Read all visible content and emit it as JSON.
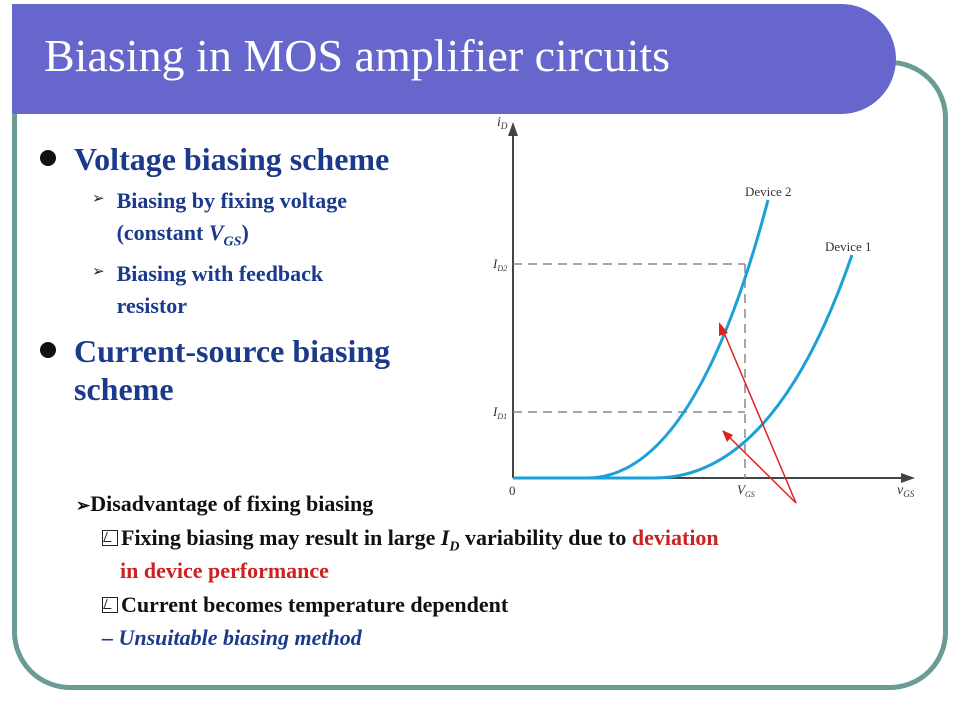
{
  "slide": {
    "title": "Biasing in MOS amplifier circuits",
    "bullet1": "Voltage biasing scheme",
    "sub1_line1": "Biasing by fixing voltage",
    "sub1_line2_pre": "(constant ",
    "sub1_var": "V",
    "sub1_subscript": "GS",
    "sub1_line2_post": ")",
    "sub2_line1": "Biasing with feedback",
    "sub2_line2": "resistor",
    "bullet2_line1": "Current-source biasing",
    "bullet2_line2": "scheme",
    "disadvantage_heading": "Disadvantage of fixing biasing",
    "point1_pre": "Fixing biasing may result in large ",
    "point1_var": "I",
    "point1_subscript": "D",
    "point1_mid": " variability due to ",
    "point1_red": "deviation",
    "point1_red_line2": "in device performance",
    "point2": "Current becomes temperature dependent",
    "conclusion": "– Unsuitable biasing method"
  },
  "graph": {
    "y_axis_var": "i",
    "y_axis_sub": "D",
    "x_axis_var": "v",
    "x_axis_sub": "GS",
    "origin": "0",
    "device2_label": "Device 2",
    "device1_label": "Device 1",
    "id2_var": "I",
    "id2_sub": "D2",
    "id1_var": "I",
    "id1_sub": "D1",
    "vgs_var": "V",
    "vgs_sub": "GS",
    "curve_color": "#1ba0d8",
    "arrow_color": "#dd2222"
  }
}
